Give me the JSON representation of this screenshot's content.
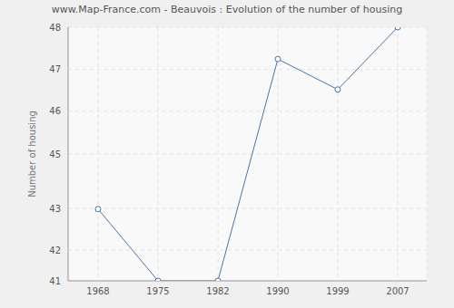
{
  "chart_data": {
    "type": "line",
    "title": "www.Map-France.com - Beauvois : Evolution of the number of housing",
    "y_label": "Number of housing",
    "categories": [
      "1968",
      "1975",
      "1982",
      "1990",
      "1999",
      "2007"
    ],
    "values": [
      42.98,
      41,
      41,
      47.12,
      46.28,
      48
    ],
    "color": "#4a74a8",
    "marker": "circle",
    "ylim": [
      41,
      48
    ],
    "yticks": [
      41,
      {
        "value": 41.85,
        "label": "42"
      },
      43,
      {
        "value": 44.5,
        "label": "45"
      },
      {
        "value": 45.68,
        "label": "46"
      },
      {
        "value": 46.83,
        "label": "47"
      },
      48
    ],
    "grid": true
  }
}
